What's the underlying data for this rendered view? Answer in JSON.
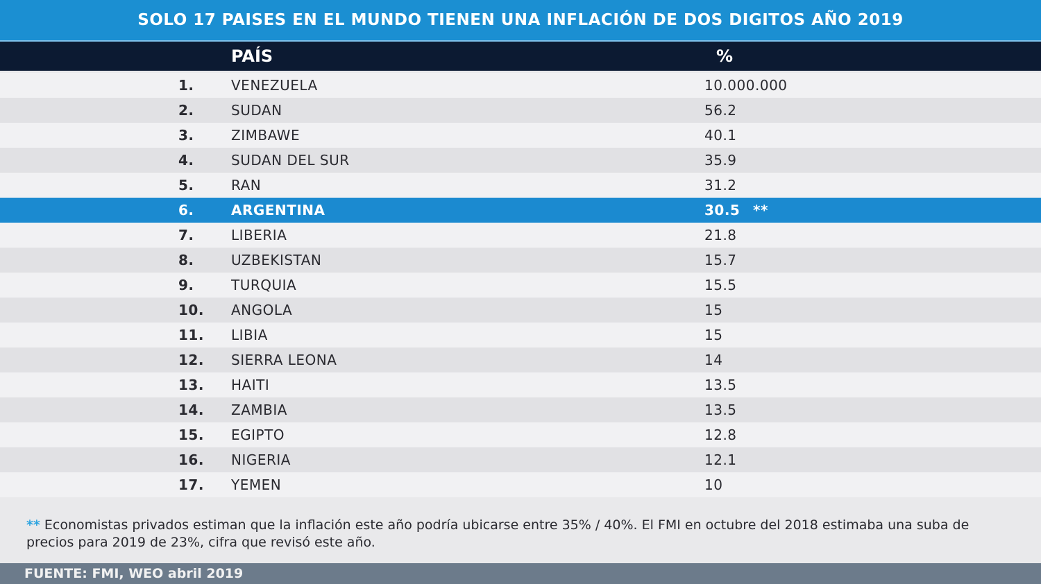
{
  "chart_data": {
    "type": "table",
    "title": "SOLO 17 PAISES EN EL MUNDO TIENEN UNA INFLACIÓN DE DOS DIGITOS AÑO 2019",
    "columns": [
      "PAÍS",
      "%"
    ],
    "rows": [
      {
        "rank": "1.",
        "country": "VENEZUELA",
        "value": "10.000.000"
      },
      {
        "rank": "2.",
        "country": "SUDAN",
        "value": "56.2"
      },
      {
        "rank": "3.",
        "country": "ZIMBAWE",
        "value": "40.1"
      },
      {
        "rank": "4.",
        "country": "SUDAN DEL SUR",
        "value": "35.9"
      },
      {
        "rank": "5.",
        "country": "RAN",
        "value": "31.2"
      },
      {
        "rank": "6.",
        "country": "ARGENTINA",
        "value": "30.5",
        "mark": "**",
        "highlight": true
      },
      {
        "rank": "7.",
        "country": "LIBERIA",
        "value": "21.8"
      },
      {
        "rank": "8.",
        "country": "UZBEKISTAN",
        "value": "15.7"
      },
      {
        "rank": "9.",
        "country": "TURQUIA",
        "value": "15.5"
      },
      {
        "rank": "10.",
        "country": "ANGOLA",
        "value": "15"
      },
      {
        "rank": "11.",
        "country": "LIBIA",
        "value": "15"
      },
      {
        "rank": "12.",
        "country": "SIERRA LEONA",
        "value": "14"
      },
      {
        "rank": "13.",
        "country": "HAITI",
        "value": "13.5"
      },
      {
        "rank": "14.",
        "country": "ZAMBIA",
        "value": "13.5"
      },
      {
        "rank": "15.",
        "country": "EGIPTO",
        "value": "12.8"
      },
      {
        "rank": "16.",
        "country": "NIGERIA",
        "value": "12.1"
      },
      {
        "rank": "17.",
        "country": "YEMEN",
        "value": "10"
      }
    ]
  },
  "note": {
    "stars": "**",
    "text": "Economistas privados estiman que la inflación este año  podría ubicarse entre 35% / 40%. El FMI en octubre del 2018 estimaba una suba de precios para 2019 de 23%, cifra que revisó este año."
  },
  "footer": "FUENTE: FMI, WEO abril 2019",
  "colors": {
    "title_bg": "#1b8fd2",
    "header_bg": "#0c1a32",
    "highlight": "#1b8ad0",
    "footer_bg": "#6c7b8b",
    "stars": "#2aa3e0"
  }
}
